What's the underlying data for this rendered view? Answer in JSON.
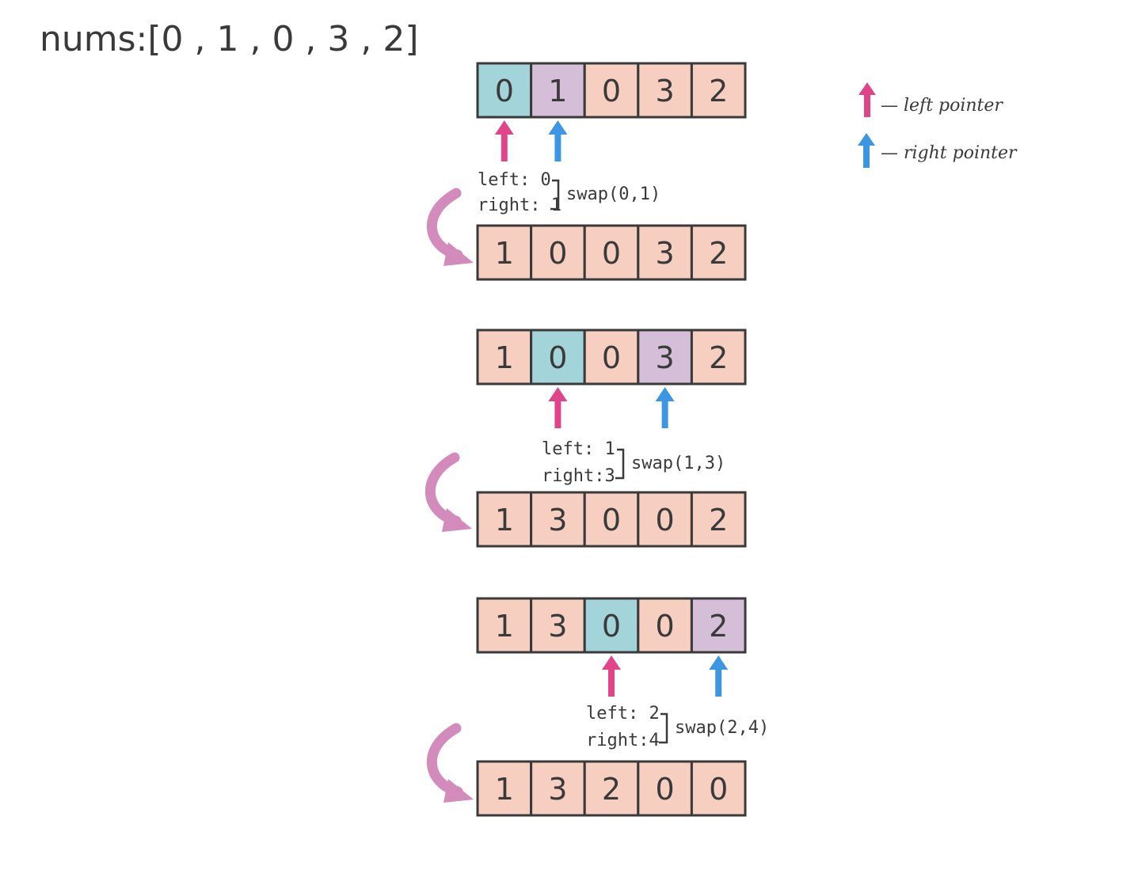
{
  "title": "nums:[0 , 1 , 0 , 3 , 2]",
  "colors": {
    "cell_default": "#f6cfc0",
    "cell_left": "#a2d4d9",
    "cell_right": "#d5bed8",
    "border": "#3a3a3a",
    "left_arrow": "#e0458a",
    "right_arrow": "#3d96e2",
    "curve_arrow": "#d38bbb"
  },
  "legend": {
    "left_label": "— left pointer",
    "right_label": "— right pointer",
    "left_icon": "up-arrow-pink",
    "right_icon": "up-arrow-blue"
  },
  "rows": [
    {
      "values": [
        "0",
        "1",
        "0",
        "3",
        "2"
      ],
      "left": 0,
      "right": 1
    },
    {
      "values": [
        "1",
        "0",
        "0",
        "3",
        "2"
      ]
    },
    {
      "values": [
        "1",
        "0",
        "0",
        "3",
        "2"
      ],
      "left": 1,
      "right": 3
    },
    {
      "values": [
        "1",
        "3",
        "0",
        "0",
        "2"
      ]
    },
    {
      "values": [
        "1",
        "3",
        "0",
        "0",
        "2"
      ],
      "left": 2,
      "right": 4
    },
    {
      "values": [
        "1",
        "3",
        "2",
        "0",
        "0"
      ]
    }
  ],
  "steps": [
    {
      "left": "left: 0",
      "right": "right: 1",
      "swap": "swap(0,1)"
    },
    {
      "left": "left: 1",
      "right": "right:3",
      "swap": "swap(1,3)"
    },
    {
      "left": "left: 2",
      "right": "right:4",
      "swap": "swap(2,4)"
    }
  ]
}
